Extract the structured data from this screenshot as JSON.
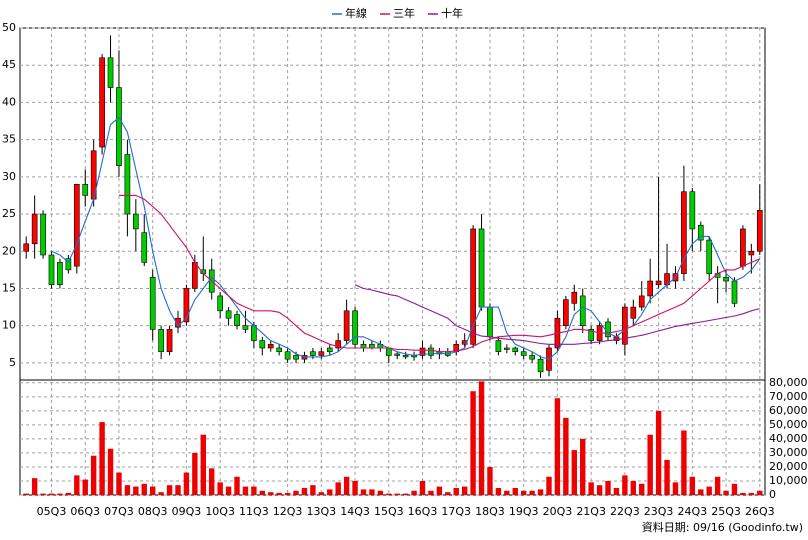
{
  "chart_data": {
    "type": "candlestick",
    "categories": [
      null,
      null,
      null,
      "05Q3",
      null,
      null,
      null,
      "06Q3",
      null,
      null,
      null,
      "07Q3",
      null,
      null,
      null,
      "08Q3",
      null,
      null,
      null,
      "09Q3",
      null,
      null,
      null,
      "10Q3",
      null,
      null,
      null,
      "11Q3",
      null,
      null,
      null,
      "12Q3",
      null,
      null,
      null,
      "13Q3",
      null,
      null,
      null,
      "14Q3",
      null,
      null,
      null,
      "15Q3",
      null,
      null,
      null,
      "16Q3",
      null,
      null,
      null,
      "17Q3",
      null,
      null,
      null,
      "18Q3",
      null,
      null,
      null,
      "19Q3",
      null,
      null,
      null,
      "20Q3",
      null,
      null,
      null,
      "21Q3",
      null,
      null,
      null,
      "22Q3",
      null,
      null,
      null,
      "23Q3",
      null,
      null,
      null,
      "24Q3",
      null,
      null,
      null,
      "25Q3",
      null,
      null,
      null,
      "26Q3"
    ],
    "open": [
      20,
      21,
      25,
      19.5,
      18.5,
      19,
      18,
      29,
      27,
      34,
      46,
      42,
      33,
      25,
      22.5,
      16.5,
      9.5,
      6.5,
      9.8,
      10.5,
      15,
      17.5,
      17.5,
      14,
      12,
      11.5,
      10,
      10,
      8,
      7,
      7,
      6.5,
      6,
      5.5,
      6.5,
      6,
      7,
      7,
      8,
      12,
      7.5,
      7.5,
      7.5,
      7,
      6.2,
      6,
      6,
      6,
      7,
      6.5,
      6.5,
      6.5,
      7.5,
      7.5,
      23,
      12.5,
      8,
      7,
      7,
      6.5,
      6,
      5.5,
      4,
      7,
      10,
      13,
      14,
      9.5,
      8,
      10.5,
      8,
      7.5,
      11,
      12.5,
      14,
      15.5,
      15.5,
      16,
      17,
      28,
      23.5,
      21.5,
      17,
      16.5,
      16,
      18,
      19.5,
      20
    ],
    "high": [
      22,
      27.5,
      25.5,
      20,
      19,
      19.5,
      29,
      31,
      35,
      46.5,
      49,
      47,
      35,
      27,
      25,
      17.5,
      10,
      10,
      12,
      15.5,
      19.5,
      22,
      19,
      14.5,
      12.5,
      12,
      12,
      10.5,
      8.5,
      8,
      7.5,
      7,
      6.5,
      6.5,
      7,
      7,
      7.5,
      9,
      13.5,
      12.5,
      8,
      8,
      8,
      7,
      6.5,
      6.5,
      6.5,
      8,
      7.5,
      7,
      7,
      8,
      9,
      23.5,
      25,
      13,
      8.5,
      7.5,
      7.2,
      7,
      6.5,
      6,
      7.5,
      12,
      14,
      15.5,
      15,
      10,
      10.5,
      11,
      9,
      13,
      13.5,
      16,
      19,
      30,
      21,
      18,
      31.5,
      28.5,
      24,
      22,
      18,
      17.5,
      16.5,
      23.5,
      21,
      29
    ],
    "low": [
      19,
      19,
      19,
      15,
      15,
      17,
      17,
      26,
      26,
      33,
      40,
      30,
      22,
      20,
      18,
      8,
      5.5,
      6,
      9,
      10,
      14.5,
      16,
      13.5,
      11,
      10,
      9.5,
      9,
      7,
      6,
      6.5,
      6,
      5,
      5,
      5,
      5.5,
      5.5,
      6,
      6.5,
      7.5,
      7,
      6.5,
      6.8,
      6.5,
      5,
      5.5,
      5.5,
      5.3,
      5.5,
      5.5,
      5.5,
      5.8,
      6,
      7,
      7,
      12,
      8,
      6,
      6.3,
      6,
      5.5,
      5,
      3,
      3.2,
      6.5,
      9.5,
      12,
      9,
      7.5,
      7.5,
      8,
      7.5,
      6,
      10,
      12,
      13,
      15,
      15,
      15,
      16,
      20,
      20,
      16,
      13,
      14.5,
      12.5,
      17.5,
      17,
      19.5
    ],
    "close": [
      21,
      25,
      19.5,
      15.5,
      15.5,
      17.5,
      29,
      27.5,
      33.5,
      46,
      42,
      31.5,
      25,
      23,
      18.5,
      9.5,
      6.5,
      9.5,
      11,
      15,
      18.5,
      17,
      14.5,
      12,
      11,
      10,
      9.5,
      8,
      7,
      7.5,
      6.5,
      5.5,
      5.5,
      6,
      6,
      6.5,
      6.5,
      8,
      12,
      7.5,
      7,
      7,
      7,
      6,
      6,
      5.8,
      5.8,
      7,
      6,
      6.2,
      6,
      7.5,
      8,
      23,
      12.5,
      8.5,
      6.5,
      6.8,
      6.5,
      6,
      5.5,
      3.8,
      7,
      11,
      13.5,
      14.5,
      10,
      8,
      10,
      8.5,
      8.5,
      12.5,
      12.5,
      14,
      16,
      16,
      17,
      17,
      28,
      23,
      21.5,
      17,
      16.5,
      16,
      13,
      23,
      20,
      25.5
    ],
    "up_color": "#ff0000",
    "down_color": "#00cc00",
    "series": [
      {
        "name": "年線",
        "color": "#1f6fd0",
        "values": [
          null,
          null,
          null,
          20,
          19.5,
          18.5,
          21,
          24,
          27,
          32,
          37,
          38,
          36,
          31,
          26,
          20,
          15,
          12,
          10,
          11,
          13.5,
          15,
          16.5,
          15.5,
          14,
          12.5,
          11,
          10,
          9,
          8,
          7.5,
          7,
          6.2,
          5.8,
          5.8,
          5.8,
          6,
          6.5,
          7.5,
          8.5,
          8.5,
          8,
          7.5,
          7,
          6.5,
          6.2,
          6,
          6.2,
          6.2,
          6.3,
          6.2,
          6.5,
          7,
          10,
          12.5,
          12.5,
          12.5,
          9,
          7.5,
          7,
          6.5,
          5.8,
          5.5,
          6.5,
          8.5,
          11.5,
          12.5,
          12,
          10.5,
          9,
          8.5,
          9.5,
          10,
          11.5,
          13.5,
          14.5,
          15.5,
          16.5,
          19,
          21,
          22,
          22,
          19.5,
          17,
          16,
          16.5,
          17.5,
          19
        ]
      },
      {
        "name": "三年",
        "color": "#d0106a",
        "values": [
          null,
          null,
          null,
          null,
          null,
          null,
          null,
          null,
          null,
          null,
          null,
          27.5,
          27.5,
          27.5,
          27,
          26,
          25,
          23.5,
          22,
          20.5,
          18.5,
          17,
          16,
          15,
          14,
          13,
          12.5,
          12,
          12,
          12,
          11.8,
          11,
          10,
          9,
          8.5,
          8,
          7.5,
          7.2,
          7,
          7,
          7,
          7,
          7,
          7,
          6.8,
          6.8,
          6.7,
          6.7,
          6.7,
          6.5,
          6.5,
          6.6,
          6.8,
          7.2,
          7.8,
          8.2,
          8.5,
          8.6,
          8.7,
          8.7,
          8.6,
          8.5,
          8.7,
          9,
          9.2,
          9.5,
          9.5,
          9.3,
          9,
          9,
          9.2,
          9.5,
          10,
          10.5,
          11,
          11.5,
          12,
          12.5,
          13,
          14,
          15,
          16,
          17,
          17.5,
          17.5,
          18,
          18.5,
          19
        ]
      },
      {
        "name": "十年",
        "color": "#8a1a9a",
        "values": [
          null,
          null,
          null,
          null,
          null,
          null,
          null,
          null,
          null,
          null,
          null,
          null,
          null,
          null,
          null,
          null,
          null,
          null,
          null,
          null,
          null,
          null,
          null,
          null,
          null,
          null,
          null,
          null,
          null,
          null,
          null,
          null,
          null,
          null,
          null,
          null,
          null,
          null,
          null,
          15.5,
          15,
          14.8,
          14.5,
          14.2,
          14,
          13.5,
          13,
          12.5,
          12,
          11.5,
          11,
          10,
          9.5,
          9,
          8.6,
          8.5,
          8.3,
          8.2,
          8.1,
          8,
          7.8,
          7.6,
          7.5,
          7.5,
          7.5,
          7.5,
          7.6,
          7.7,
          7.8,
          8,
          8.1,
          8.3,
          8.5,
          8.7,
          9,
          9.3,
          9.6,
          9.9,
          10.1,
          10.3,
          10.5,
          10.7,
          10.9,
          11.1,
          11.3,
          11.6,
          12,
          12.3
        ]
      }
    ],
    "ylim": [
      2.7,
      50
    ],
    "yticks": [
      5,
      10,
      15,
      20,
      25,
      30,
      35,
      40,
      45,
      50
    ],
    "volume": [
      1000,
      12000,
      1000,
      1000,
      1000,
      1500,
      14000,
      11000,
      28000,
      52000,
      33000,
      16000,
      7000,
      6000,
      8000,
      6000,
      2000,
      7000,
      7000,
      16000,
      30000,
      43000,
      19000,
      9000,
      6000,
      13000,
      6000,
      6000,
      3000,
      2000,
      1500,
      1500,
      3000,
      5000,
      7000,
      2000,
      4000,
      9000,
      13000,
      10000,
      4000,
      4000,
      3000,
      1000,
      1000,
      1000,
      3000,
      10000,
      3000,
      6000,
      2000,
      5000,
      6000,
      74000,
      81000,
      20000,
      5000,
      3000,
      5000,
      3000,
      3000,
      4000,
      13000,
      69000,
      55000,
      32000,
      40000,
      9000,
      7000,
      10000,
      5000,
      14000,
      10000,
      8000,
      43000,
      60000,
      25000,
      9000,
      46000,
      13000,
      4000,
      6000,
      13000,
      3000,
      8000,
      1500,
      1500,
      3000
    ],
    "volume_color": "#ee0000",
    "y2lim": [
      0,
      82000
    ],
    "y2ticks": [
      0,
      {
        "value": 10000,
        "label": "10,000"
      },
      {
        "value": 20000,
        "label": "20,000"
      },
      {
        "value": 30000,
        "label": "30,000"
      },
      {
        "value": 40000,
        "label": "40,000"
      },
      {
        "value": 50000,
        "label": "50,000"
      },
      {
        "value": 60000,
        "label": "60,000"
      },
      {
        "value": 70000,
        "label": "70,000"
      },
      {
        "value": 80000,
        "label": "80,000"
      }
    ],
    "grid": true,
    "legend": "top",
    "footnote": "資料日期: 09/16 (Goodinfo.tw)"
  }
}
